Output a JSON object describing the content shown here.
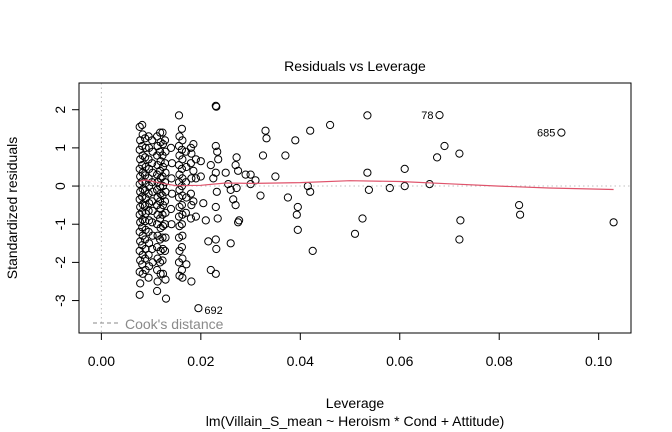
{
  "chart_data": {
    "type": "scatter",
    "title": "Residuals vs Leverage",
    "xlabel": "Leverage",
    "ylabel": "Standardized residuals",
    "subtitle": "lm(Villain_S_mean ~ Heroism * Cond + Attitude)",
    "xlim": [
      -0.0045,
      0.1065
    ],
    "ylim": [
      -3.85,
      2.7
    ],
    "x_ticks": [
      0.0,
      0.02,
      0.04,
      0.06,
      0.08,
      0.1
    ],
    "x_tick_labels": [
      "0.00",
      "0.02",
      "0.04",
      "0.06",
      "0.08",
      "0.10"
    ],
    "y_ticks": [
      -3,
      -2,
      -1,
      0,
      1,
      2
    ],
    "y_tick_labels": [
      "-3",
      "-2",
      "-1",
      "0",
      "1",
      "2"
    ],
    "grid": false,
    "legend": {
      "position": "bottom-left",
      "entries": [
        {
          "label": "Cook's distance",
          "style": "dashed",
          "color": "#8a8a8a"
        }
      ]
    },
    "colors": {
      "points": "#000000",
      "smooth": "#df536b",
      "reference": "#bfbfbf",
      "cooks": "#8a8a8a"
    },
    "labeled_points": [
      {
        "label": "78",
        "x": 0.068,
        "y": 1.86
      },
      {
        "label": "685",
        "x": 0.0925,
        "y": 1.4
      },
      {
        "label": "692",
        "x": 0.0195,
        "y": -3.2
      }
    ],
    "smooth_line": {
      "x": [
        0.0075,
        0.009,
        0.011,
        0.015,
        0.02,
        0.025,
        0.03,
        0.04,
        0.05,
        0.06,
        0.07,
        0.08,
        0.09,
        0.103
      ],
      "y": [
        0.12,
        0.16,
        0.1,
        0.01,
        0.02,
        0.08,
        0.07,
        0.09,
        0.14,
        0.12,
        0.06,
        0.0,
        -0.05,
        -0.09
      ]
    },
    "points": [
      [
        0.0077,
        1.55
      ],
      [
        0.0078,
        1.2
      ],
      [
        0.0077,
        0.95
      ],
      [
        0.0078,
        0.7
      ],
      [
        0.0077,
        0.45
      ],
      [
        0.0078,
        0.25
      ],
      [
        0.0077,
        0.05
      ],
      [
        0.0078,
        -0.15
      ],
      [
        0.0077,
        -0.35
      ],
      [
        0.0078,
        -0.55
      ],
      [
        0.0077,
        -0.75
      ],
      [
        0.0078,
        -0.95
      ],
      [
        0.0077,
        -1.2
      ],
      [
        0.0078,
        -1.45
      ],
      [
        0.0077,
        -1.7
      ],
      [
        0.0078,
        -1.95
      ],
      [
        0.0077,
        -2.25
      ],
      [
        0.0078,
        -2.55
      ],
      [
        0.0077,
        -2.85
      ],
      [
        0.0082,
        1.6
      ],
      [
        0.0083,
        1.35
      ],
      [
        0.0082,
        1.05
      ],
      [
        0.0083,
        0.8
      ],
      [
        0.0082,
        0.55
      ],
      [
        0.0083,
        0.35
      ],
      [
        0.0082,
        0.12
      ],
      [
        0.0083,
        -0.08
      ],
      [
        0.0082,
        -0.28
      ],
      [
        0.0083,
        -0.48
      ],
      [
        0.0082,
        -0.68
      ],
      [
        0.0083,
        -0.88
      ],
      [
        0.0082,
        -1.08
      ],
      [
        0.0083,
        -1.3
      ],
      [
        0.0082,
        -1.55
      ],
      [
        0.0083,
        -1.8
      ],
      [
        0.0082,
        -2.05
      ],
      [
        0.0083,
        -2.3
      ],
      [
        0.0088,
        1.25
      ],
      [
        0.0089,
        1.0
      ],
      [
        0.0088,
        0.75
      ],
      [
        0.0089,
        0.5
      ],
      [
        0.0088,
        0.28
      ],
      [
        0.0089,
        0.08
      ],
      [
        0.0088,
        -0.12
      ],
      [
        0.0089,
        -0.32
      ],
      [
        0.0088,
        -0.52
      ],
      [
        0.0089,
        -0.72
      ],
      [
        0.0088,
        -0.92
      ],
      [
        0.0089,
        -1.15
      ],
      [
        0.0088,
        -1.4
      ],
      [
        0.0089,
        -1.65
      ],
      [
        0.0088,
        -1.9
      ],
      [
        0.0089,
        -2.2
      ],
      [
        0.0095,
        1.3
      ],
      [
        0.0096,
        1.0
      ],
      [
        0.0095,
        0.7
      ],
      [
        0.0096,
        0.45
      ],
      [
        0.0095,
        0.2
      ],
      [
        0.0096,
        0.0
      ],
      [
        0.0095,
        -0.2
      ],
      [
        0.0096,
        -0.45
      ],
      [
        0.0095,
        -0.65
      ],
      [
        0.0096,
        -0.9
      ],
      [
        0.0095,
        -1.2
      ],
      [
        0.0096,
        -1.5
      ],
      [
        0.0095,
        -1.8
      ],
      [
        0.0096,
        -2.1
      ],
      [
        0.0095,
        -2.4
      ],
      [
        0.0102,
        1.2
      ],
      [
        0.0103,
        0.9
      ],
      [
        0.0102,
        0.6
      ],
      [
        0.0103,
        0.35
      ],
      [
        0.0102,
        0.1
      ],
      [
        0.0103,
        -0.15
      ],
      [
        0.0102,
        -0.4
      ],
      [
        0.0103,
        -0.65
      ],
      [
        0.0102,
        -0.95
      ],
      [
        0.0103,
        -1.3
      ],
      [
        0.0102,
        -1.65
      ],
      [
        0.0103,
        -2.0
      ],
      [
        0.0112,
        1.3
      ],
      [
        0.0113,
        1.05
      ],
      [
        0.0112,
        0.8
      ],
      [
        0.0113,
        0.55
      ],
      [
        0.0112,
        0.3
      ],
      [
        0.0113,
        0.1
      ],
      [
        0.0112,
        -0.1
      ],
      [
        0.0113,
        -0.3
      ],
      [
        0.0112,
        -0.5
      ],
      [
        0.0113,
        -0.75
      ],
      [
        0.0112,
        -1.0
      ],
      [
        0.0113,
        -1.3
      ],
      [
        0.0112,
        -1.6
      ],
      [
        0.0113,
        -1.9
      ],
      [
        0.0112,
        -2.2
      ],
      [
        0.0113,
        -2.5
      ],
      [
        0.0112,
        -2.75
      ],
      [
        0.0118,
        1.4
      ],
      [
        0.0119,
        1.15
      ],
      [
        0.0118,
        0.9
      ],
      [
        0.0119,
        0.65
      ],
      [
        0.0118,
        0.4
      ],
      [
        0.0119,
        0.2
      ],
      [
        0.0118,
        0.0
      ],
      [
        0.0119,
        -0.2
      ],
      [
        0.0118,
        -0.4
      ],
      [
        0.0119,
        -0.6
      ],
      [
        0.0118,
        -0.85
      ],
      [
        0.0119,
        -1.1
      ],
      [
        0.0118,
        -1.4
      ],
      [
        0.0119,
        -1.7
      ],
      [
        0.0118,
        -2.0
      ],
      [
        0.0119,
        -2.3
      ],
      [
        0.0123,
        1.4
      ],
      [
        0.0124,
        1.1
      ],
      [
        0.0123,
        0.8
      ],
      [
        0.0124,
        0.5
      ],
      [
        0.0123,
        0.25
      ],
      [
        0.0124,
        0.0
      ],
      [
        0.0123,
        -0.25
      ],
      [
        0.0124,
        -0.5
      ],
      [
        0.0123,
        -0.75
      ],
      [
        0.0124,
        -1.05
      ],
      [
        0.0123,
        -1.35
      ],
      [
        0.0124,
        -1.65
      ],
      [
        0.0123,
        -1.95
      ],
      [
        0.0124,
        -2.3
      ],
      [
        0.0128,
        1.2
      ],
      [
        0.0129,
        0.9
      ],
      [
        0.0128,
        0.6
      ],
      [
        0.0129,
        0.35
      ],
      [
        0.0128,
        0.1
      ],
      [
        0.0129,
        -0.15
      ],
      [
        0.0128,
        -0.4
      ],
      [
        0.0129,
        -0.7
      ],
      [
        0.0128,
        -1.0
      ],
      [
        0.0129,
        -1.35
      ],
      [
        0.0128,
        -1.7
      ],
      [
        0.0129,
        -2.45
      ],
      [
        0.013,
        -2.95
      ],
      [
        0.014,
        1.0
      ],
      [
        0.0142,
        0.6
      ],
      [
        0.0141,
        0.2
      ],
      [
        0.0142,
        -0.2
      ],
      [
        0.014,
        -0.6
      ],
      [
        0.0141,
        -1.0
      ],
      [
        0.0156,
        1.85
      ],
      [
        0.0157,
        1.3
      ],
      [
        0.0156,
        1.05
      ],
      [
        0.0157,
        0.8
      ],
      [
        0.0156,
        0.55
      ],
      [
        0.0157,
        0.3
      ],
      [
        0.0156,
        0.1
      ],
      [
        0.0157,
        -0.1
      ],
      [
        0.0156,
        -0.3
      ],
      [
        0.0157,
        -0.55
      ],
      [
        0.0156,
        -0.8
      ],
      [
        0.0157,
        -1.05
      ],
      [
        0.0156,
        -1.35
      ],
      [
        0.0157,
        -1.7
      ],
      [
        0.0156,
        -2.0
      ],
      [
        0.0157,
        -2.35
      ],
      [
        0.0162,
        1.5
      ],
      [
        0.0163,
        1.2
      ],
      [
        0.0162,
        0.95
      ],
      [
        0.0163,
        0.7
      ],
      [
        0.0162,
        0.45
      ],
      [
        0.0163,
        0.2
      ],
      [
        0.0162,
        0.0
      ],
      [
        0.0163,
        -0.25
      ],
      [
        0.0162,
        -0.5
      ],
      [
        0.0163,
        -0.75
      ],
      [
        0.0162,
        -1.0
      ],
      [
        0.0163,
        -1.3
      ],
      [
        0.0162,
        -1.6
      ],
      [
        0.0163,
        -1.9
      ],
      [
        0.0162,
        -2.2
      ],
      [
        0.0163,
        -2.4
      ],
      [
        0.017,
        0.9
      ],
      [
        0.0171,
        0.5
      ],
      [
        0.017,
        0.1
      ],
      [
        0.0171,
        -0.3
      ],
      [
        0.017,
        -0.7
      ],
      [
        0.0171,
        -2.05
      ],
      [
        0.018,
        1.0
      ],
      [
        0.0181,
        0.85
      ],
      [
        0.018,
        0.6
      ],
      [
        0.0181,
        0.2
      ],
      [
        0.018,
        -0.2
      ],
      [
        0.0181,
        -0.5
      ],
      [
        0.018,
        -0.85
      ],
      [
        0.0181,
        -2.5
      ],
      [
        0.0185,
        1.1
      ],
      [
        0.019,
        0.7
      ],
      [
        0.0185,
        0.4
      ],
      [
        0.019,
        0.2
      ],
      [
        0.0185,
        -0.4
      ],
      [
        0.019,
        -0.8
      ],
      [
        0.02,
        0.65
      ],
      [
        0.02,
        0.25
      ],
      [
        0.0205,
        -0.45
      ],
      [
        0.021,
        -0.9
      ],
      [
        0.0215,
        -1.45
      ],
      [
        0.022,
        -2.2
      ],
      [
        0.0195,
        -3.2
      ],
      [
        0.022,
        0.55
      ],
      [
        0.0225,
        0.2
      ],
      [
        0.023,
        2.1
      ],
      [
        0.0231,
        2.08
      ],
      [
        0.023,
        1.05
      ],
      [
        0.0233,
        0.9
      ],
      [
        0.0235,
        0.7
      ],
      [
        0.023,
        0.35
      ],
      [
        0.0232,
        -0.15
      ],
      [
        0.023,
        -0.55
      ],
      [
        0.0234,
        -0.85
      ],
      [
        0.023,
        -1.4
      ],
      [
        0.0231,
        -1.65
      ],
      [
        0.023,
        -2.3
      ],
      [
        0.025,
        0.35
      ],
      [
        0.0255,
        0.05
      ],
      [
        0.026,
        -0.1
      ],
      [
        0.0265,
        -0.35
      ],
      [
        0.026,
        -1.5
      ],
      [
        0.027,
        0.55
      ],
      [
        0.0272,
        0.75
      ],
      [
        0.0275,
        0.4
      ],
      [
        0.0272,
        -0.05
      ],
      [
        0.027,
        -0.5
      ],
      [
        0.0275,
        -0.95
      ],
      [
        0.0277,
        -0.9
      ],
      [
        0.029,
        0.3
      ],
      [
        0.03,
        0.05
      ],
      [
        0.03,
        0.3
      ],
      [
        0.031,
        0.15
      ],
      [
        0.032,
        -0.25
      ],
      [
        0.0325,
        0.8
      ],
      [
        0.033,
        1.45
      ],
      [
        0.0332,
        1.25
      ],
      [
        0.035,
        0.25
      ],
      [
        0.037,
        0.8
      ],
      [
        0.0375,
        -0.3
      ],
      [
        0.039,
        1.2
      ],
      [
        0.0395,
        -0.55
      ],
      [
        0.0393,
        -0.75
      ],
      [
        0.0395,
        -1.15
      ],
      [
        0.042,
        1.45
      ],
      [
        0.0415,
        0.0
      ],
      [
        0.042,
        -0.15
      ],
      [
        0.0425,
        -1.7
      ],
      [
        0.046,
        1.6
      ],
      [
        0.051,
        -1.25
      ],
      [
        0.0525,
        -0.85
      ],
      [
        0.0535,
        1.85
      ],
      [
        0.0535,
        0.35
      ],
      [
        0.0538,
        -0.1
      ],
      [
        0.058,
        -0.05
      ],
      [
        0.061,
        0.45
      ],
      [
        0.061,
        0.0
      ],
      [
        0.066,
        0.05
      ],
      [
        0.0675,
        0.75
      ],
      [
        0.068,
        1.86
      ],
      [
        0.069,
        1.05
      ],
      [
        0.072,
        0.85
      ],
      [
        0.0722,
        -0.9
      ],
      [
        0.072,
        -1.4
      ],
      [
        0.084,
        -0.5
      ],
      [
        0.0842,
        -0.75
      ],
      [
        0.0925,
        1.4
      ],
      [
        0.103,
        -0.95
      ]
    ]
  }
}
